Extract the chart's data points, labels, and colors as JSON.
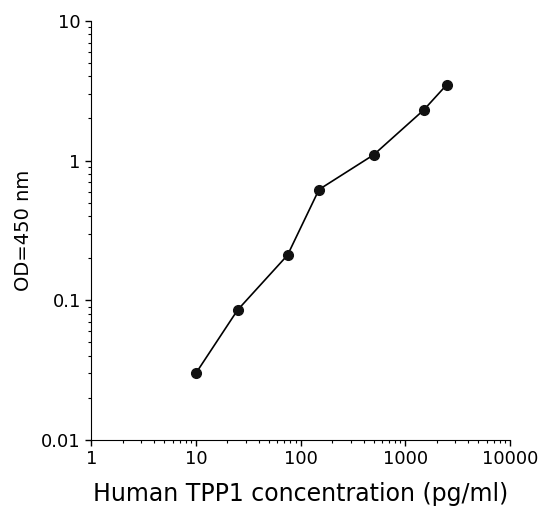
{
  "x_values": [
    10,
    25,
    75,
    150,
    500,
    1500,
    2500
  ],
  "y_values": [
    0.03,
    0.085,
    0.21,
    0.62,
    1.1,
    2.3,
    3.5
  ],
  "xlabel": "Human TPP1 concentration (pg/ml)",
  "ylabel": "OD=450 nm",
  "xlim": [
    1,
    10000
  ],
  "ylim": [
    0.01,
    10
  ],
  "xticks": [
    1,
    10,
    100,
    1000,
    10000
  ],
  "xticklabels": [
    "1",
    "10",
    "100",
    "1000",
    "10000"
  ],
  "yticks": [
    0.01,
    0.1,
    1,
    10
  ],
  "yticklabels": [
    "0.01",
    "0.1",
    "1",
    "10"
  ],
  "line_color": "#000000",
  "marker_color": "#111111",
  "marker_size": 7,
  "line_width": 1.2,
  "xlabel_fontsize": 17,
  "ylabel_fontsize": 14,
  "tick_fontsize": 13,
  "background_color": "#ffffff",
  "font_family": "Arial"
}
